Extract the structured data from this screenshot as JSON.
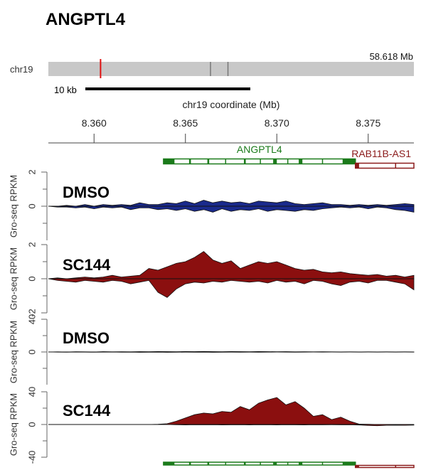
{
  "gene_title": "ANGPTL4",
  "ideogram": {
    "chrom": "chr19",
    "length_label": "58.618 Mb",
    "length_mb": 58.618,
    "region_marker_mb": 8.37,
    "band_marks_mb": [
      26.0,
      28.8
    ],
    "scalebar_label": "10 kb",
    "scalebar_kb": 10
  },
  "coord_axis": {
    "title": "chr19 coordinate (Mb)",
    "range": [
      8.3575,
      8.3775
    ],
    "ticks": [
      8.36,
      8.365,
      8.37,
      8.375
    ],
    "tick_labels": [
      "8.360",
      "8.365",
      "8.370",
      "8.375"
    ]
  },
  "genes": [
    {
      "name": "ANGPTL4",
      "start": 8.3638,
      "end": 8.3743,
      "color": "#1a7a1a",
      "exons": [
        [
          8.3638,
          8.3644
        ],
        [
          8.3652,
          8.3653
        ],
        [
          8.3662,
          8.3663
        ],
        [
          8.3682,
          8.3683
        ],
        [
          8.3698,
          8.37
        ],
        [
          8.3712,
          8.3714
        ],
        [
          8.3736,
          8.3743
        ]
      ],
      "introns_mid": [
        8.3672,
        8.3691,
        8.3706,
        8.3725
      ]
    },
    {
      "name": "RAB11B-AS1",
      "start": 8.3743,
      "end": 8.3775,
      "color": "#8b1a1a",
      "exons": [
        [
          8.3743,
          8.3745
        ]
      ],
      "introns_mid": [
        8.3765
      ]
    }
  ],
  "colors": {
    "dmso_pos": "#1a2a8c",
    "sc144": "#8b0f0f",
    "axis": "#555555",
    "gene_green": "#1a7a1a",
    "gene_red": "#8b1a1a"
  },
  "tracks": [
    {
      "label": "DMSO",
      "ylabel": "Gro-seq RPKM",
      "ylim": [
        -2,
        2
      ],
      "yticks": [
        2,
        0
      ],
      "tick_labels": [
        "2",
        "0"
      ],
      "color": "#1a2a8c"
    },
    {
      "label": "SC144",
      "ylabel": "Gro-seq RPKM",
      "ylim": [
        -2,
        2
      ],
      "yticks": [
        2,
        0,
        -2
      ],
      "tick_labels": [
        "2",
        "0",
        "-2"
      ],
      "color": "#8b0f0f"
    },
    {
      "label": "DMSO",
      "ylabel": "Gro-seq RPKM",
      "ylim": [
        -40,
        40
      ],
      "yticks": [
        40,
        0
      ],
      "tick_labels": [
        "40",
        "0"
      ],
      "color": "#1a2a8c"
    },
    {
      "label": "SC144",
      "ylabel": "Gro-seq RPKM",
      "ylim": [
        -40,
        40
      ],
      "yticks": [
        40,
        0,
        -40
      ],
      "tick_labels": [
        "40",
        "0",
        "-40"
      ],
      "color": "#8b0f0f"
    }
  ],
  "chart_data": [
    {
      "type": "area",
      "title": "DMSO",
      "ylabel": "Gro-seq RPKM",
      "ylim": [
        -2,
        2
      ],
      "x": [
        8.3575,
        8.358,
        8.3585,
        8.359,
        8.3595,
        8.36,
        8.3605,
        8.361,
        8.3615,
        8.362,
        8.3625,
        8.363,
        8.3635,
        8.364,
        8.3645,
        8.365,
        8.3655,
        8.366,
        8.3665,
        8.367,
        8.3675,
        8.368,
        8.3685,
        8.369,
        8.3695,
        8.37,
        8.3705,
        8.371,
        8.3715,
        8.372,
        8.3725,
        8.373,
        8.3735,
        8.374,
        8.3745,
        8.375,
        8.3755,
        8.376,
        8.3765,
        8.377,
        8.3775
      ],
      "pos": [
        0,
        0,
        0.05,
        0,
        0.1,
        0,
        0.1,
        0.05,
        0.1,
        0.05,
        0.2,
        0.1,
        0.1,
        0.2,
        0.15,
        0.3,
        0.15,
        0.35,
        0.2,
        0.3,
        0.2,
        0.25,
        0.15,
        0.3,
        0.25,
        0.2,
        0.3,
        0.15,
        0.1,
        0.15,
        0.2,
        0.1,
        0.1,
        0.05,
        0.1,
        0.05,
        0.1,
        0.05,
        0.1,
        0.15,
        0.1
      ],
      "neg": [
        0,
        -0.05,
        -0.05,
        -0.1,
        -0.05,
        -0.15,
        -0.05,
        -0.1,
        -0.05,
        -0.2,
        -0.1,
        -0.1,
        -0.2,
        -0.15,
        -0.25,
        -0.15,
        -0.3,
        -0.2,
        -0.35,
        -0.15,
        -0.3,
        -0.2,
        -0.25,
        -0.15,
        -0.3,
        -0.2,
        -0.25,
        -0.3,
        -0.2,
        -0.25,
        -0.15,
        -0.1,
        -0.05,
        -0.1,
        -0.05,
        -0.15,
        -0.05,
        -0.1,
        -0.2,
        -0.25,
        -0.35
      ]
    },
    {
      "type": "area",
      "title": "SC144",
      "ylabel": "Gro-seq RPKM",
      "ylim": [
        -2,
        2
      ],
      "x": [
        8.3575,
        8.358,
        8.3585,
        8.359,
        8.3595,
        8.36,
        8.3605,
        8.361,
        8.3615,
        8.362,
        8.3625,
        8.363,
        8.3635,
        8.364,
        8.3645,
        8.365,
        8.3655,
        8.366,
        8.3665,
        8.367,
        8.3675,
        8.368,
        8.3685,
        8.369,
        8.3695,
        8.37,
        8.3705,
        8.371,
        8.3715,
        8.372,
        8.3725,
        8.373,
        8.3735,
        8.374,
        8.3745,
        8.375,
        8.3755,
        8.376,
        8.3765,
        8.377,
        8.3775
      ],
      "pos": [
        0,
        0.05,
        0,
        0.05,
        0.1,
        0.05,
        0.1,
        0.2,
        0.1,
        0.15,
        0.2,
        0.6,
        0.5,
        0.7,
        0.9,
        1.0,
        1.25,
        1.6,
        1.1,
        0.9,
        1.05,
        0.6,
        0.8,
        1.0,
        0.9,
        1.0,
        0.8,
        0.6,
        0.5,
        0.55,
        0.4,
        0.35,
        0.4,
        0.3,
        0.25,
        0.2,
        0.25,
        0.15,
        0.2,
        0.1,
        0.2
      ],
      "neg": [
        0,
        -0.1,
        -0.15,
        -0.2,
        -0.1,
        -0.15,
        -0.2,
        -0.1,
        -0.15,
        -0.3,
        -0.2,
        -0.1,
        -0.8,
        -1.1,
        -0.6,
        -0.3,
        -0.2,
        -0.25,
        -0.15,
        -0.2,
        -0.1,
        -0.15,
        -0.2,
        -0.15,
        -0.25,
        -0.1,
        -0.2,
        -0.15,
        -0.3,
        -0.1,
        -0.15,
        -0.3,
        -0.4,
        -0.2,
        -0.15,
        -0.25,
        -0.1,
        -0.1,
        -0.2,
        -0.3,
        -0.65
      ]
    },
    {
      "type": "area",
      "title": "DMSO",
      "ylabel": "Gro-seq RPKM",
      "ylim": [
        -40,
        40
      ],
      "x": [
        8.3575,
        8.358,
        8.3585,
        8.359,
        8.3595,
        8.36,
        8.3605,
        8.361,
        8.3615,
        8.362,
        8.3625,
        8.363,
        8.3635,
        8.364,
        8.3645,
        8.365,
        8.3655,
        8.366,
        8.3665,
        8.367,
        8.3675,
        8.368,
        8.3685,
        8.369,
        8.3695,
        8.37,
        8.3705,
        8.371,
        8.3715,
        8.372,
        8.3725,
        8.373,
        8.3735,
        8.374,
        8.3745,
        8.375,
        8.3755,
        8.376,
        8.3765,
        8.377,
        8.3775
      ],
      "pos": [
        0,
        0.2,
        0,
        0.3,
        0.2,
        0,
        0.4,
        0.2,
        0.3,
        0.2,
        0.4,
        0.3,
        0.5,
        0.4,
        0.3,
        0.5,
        0.4,
        0.6,
        0.4,
        0.3,
        0.5,
        0.4,
        0.3,
        0.5,
        0.4,
        0.3,
        0.4,
        0.2,
        0.3,
        0.2,
        0.3,
        0.2,
        0.1,
        0.2,
        0.1,
        0.2,
        0.1,
        0.2,
        0.1,
        0.2,
        0.1
      ],
      "neg": [
        0,
        -0.2,
        -0.3,
        -0.1,
        -0.2,
        -0.3,
        -0.2,
        -0.1,
        -0.3,
        -0.2,
        -0.4,
        -0.3,
        -0.2,
        -0.4,
        -0.3,
        -0.2,
        -0.3,
        -0.2,
        -0.4,
        -0.3,
        -0.2,
        -0.3,
        -0.2,
        -0.3,
        -0.2,
        -0.1,
        -0.2,
        -0.3,
        -0.2,
        -0.1,
        -0.2,
        -0.1,
        -0.2,
        -0.1,
        -0.2,
        -0.1,
        -0.2,
        -0.1,
        -0.2,
        -0.1,
        -0.2
      ]
    },
    {
      "type": "area",
      "title": "SC144",
      "ylabel": "Gro-seq RPKM",
      "ylim": [
        -40,
        40
      ],
      "x": [
        8.3575,
        8.358,
        8.3585,
        8.359,
        8.3595,
        8.36,
        8.3605,
        8.361,
        8.3615,
        8.362,
        8.3625,
        8.363,
        8.3635,
        8.364,
        8.3645,
        8.365,
        8.3655,
        8.366,
        8.3665,
        8.367,
        8.3675,
        8.368,
        8.3685,
        8.369,
        8.3695,
        8.37,
        8.3705,
        8.371,
        8.3715,
        8.372,
        8.3725,
        8.373,
        8.3735,
        8.374,
        8.3745,
        8.375,
        8.3755,
        8.376,
        8.3765,
        8.377,
        8.3775
      ],
      "pos": [
        0,
        0,
        0,
        0,
        0,
        0,
        0,
        0,
        0,
        0,
        0,
        0,
        0.3,
        1.0,
        4.0,
        8.0,
        12.0,
        14.0,
        13.0,
        16.0,
        15.0,
        22.0,
        18.0,
        26.0,
        30.0,
        33.0,
        24.0,
        28.0,
        20.0,
        10.0,
        12.0,
        6.0,
        9.0,
        4.0,
        0.5,
        0.3,
        0,
        0,
        0,
        0,
        0
      ],
      "neg": [
        0,
        0,
        0,
        0,
        0,
        0,
        0,
        0,
        0,
        0,
        0,
        0,
        0,
        0,
        -0.3,
        -0.5,
        -0.3,
        -0.4,
        -0.3,
        -0.5,
        -0.4,
        -0.3,
        -0.5,
        -0.3,
        -0.4,
        -0.5,
        -0.3,
        -0.4,
        -0.5,
        -0.3,
        -0.4,
        -0.3,
        -0.4,
        -0.3,
        -0.6,
        -1.2,
        -1.5,
        -1.0,
        -0.8,
        -1.0,
        -0.7
      ]
    }
  ]
}
